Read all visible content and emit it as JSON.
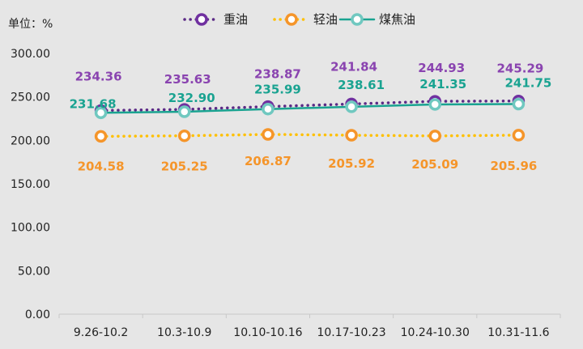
{
  "chart_data": {
    "type": "line",
    "unit_label": "单位：%",
    "categories": [
      "9.26-10.2",
      "10.3-10.9",
      "10.10-10.16",
      "10.17-10.23",
      "10.24-10.30",
      "10.31-11.6"
    ],
    "ylim": [
      0,
      300
    ],
    "yticks": [
      "0.00",
      "50.00",
      "100.00",
      "150.00",
      "200.00",
      "250.00",
      "300.00"
    ],
    "grid": false,
    "legend_position": "top",
    "series": [
      {
        "name": "重油",
        "values": [
          234.36,
          235.63,
          238.87,
          241.84,
          244.93,
          245.29
        ],
        "labels": [
          "234.36",
          "235.63",
          "238.87",
          "241.84",
          "244.93",
          "245.29"
        ],
        "line_color": "#5b2a86",
        "label_color": "#8a44b0",
        "marker_fill": "#7030a0",
        "line_style": "dotted"
      },
      {
        "name": "轻油",
        "values": [
          204.58,
          205.25,
          206.87,
          205.92,
          205.09,
          205.96
        ],
        "labels": [
          "204.58",
          "205.25",
          "206.87",
          "205.92",
          "205.09",
          "205.96"
        ],
        "line_color": "#ffc000",
        "label_color": "#f5952a",
        "marker_fill": "#f5952a",
        "line_style": "dotted"
      },
      {
        "name": "煤焦油",
        "values": [
          231.68,
          232.9,
          235.99,
          238.61,
          241.35,
          241.75
        ],
        "labels": [
          "231.68",
          "232.90",
          "235.99",
          "238.61",
          "241.35",
          "241.75"
        ],
        "line_color": "#1aa391",
        "label_color": "#1aa391",
        "marker_fill": "#70c8c0",
        "line_style": "solid"
      }
    ]
  }
}
